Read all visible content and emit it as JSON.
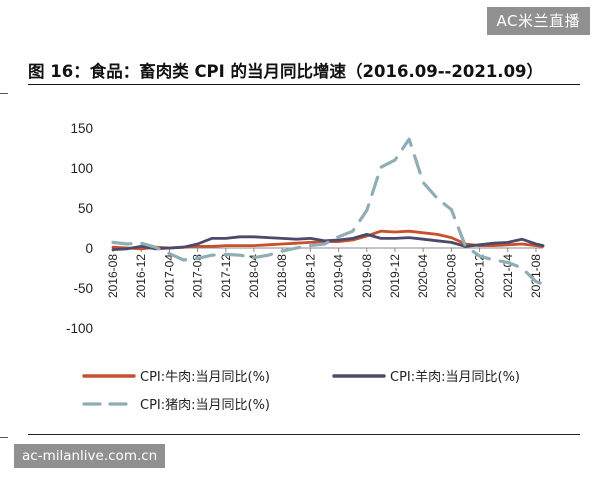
{
  "watermark": "AC米兰直播",
  "footer_url": "ac-milanlive.com.cn",
  "chart_data": {
    "type": "line",
    "title": "图 16：食品：畜肉类 CPI 的当月同比增速（2016.09--2021.09）",
    "xlabel": "",
    "ylabel": "",
    "ylim": [
      -100,
      150
    ],
    "yticks": [
      150,
      100,
      50,
      0,
      -50,
      -100
    ],
    "xtick_labels": [
      "2016-08",
      "2016-12",
      "2017-04",
      "2017-08",
      "2017-12",
      "2018-04",
      "2018-08",
      "2018-12",
      "2019-04",
      "2019-08",
      "2019-12",
      "2020-04",
      "2020-08",
      "2020-12",
      "2021-04",
      "2021-08"
    ],
    "x": [
      "2016-08",
      "2016-10",
      "2016-12",
      "2017-02",
      "2017-04",
      "2017-06",
      "2017-08",
      "2017-10",
      "2017-12",
      "2018-02",
      "2018-04",
      "2018-06",
      "2018-08",
      "2018-10",
      "2018-12",
      "2019-02",
      "2019-04",
      "2019-06",
      "2019-08",
      "2019-10",
      "2019-12",
      "2020-02",
      "2020-04",
      "2020-06",
      "2020-08",
      "2020-10",
      "2020-12",
      "2021-02",
      "2021-04",
      "2021-06",
      "2021-08",
      "2021-09"
    ],
    "series": [
      {
        "name": "CPI:牛肉:当月同比(%)",
        "color": "#c8502c",
        "style": "solid",
        "values": [
          1,
          0,
          -1,
          1,
          0,
          1,
          2,
          2,
          3,
          3,
          3,
          4,
          5,
          6,
          7,
          8,
          8,
          10,
          15,
          21,
          20,
          21,
          19,
          17,
          13,
          5,
          3,
          3,
          4,
          5,
          3,
          2
        ]
      },
      {
        "name": "CPI:羊肉:当月同比(%)",
        "color": "#4c4a6a",
        "style": "solid",
        "values": [
          -2,
          -1,
          2,
          -1,
          0,
          1,
          5,
          12,
          12,
          14,
          14,
          13,
          12,
          11,
          12,
          9,
          10,
          12,
          17,
          12,
          12,
          13,
          11,
          9,
          7,
          2,
          4,
          6,
          7,
          11,
          5,
          3
        ]
      },
      {
        "name": "CPI:猪肉:当月同比(%)",
        "color": "#8fadb4",
        "style": "dashed",
        "values": [
          7,
          5,
          6,
          1,
          -7,
          -15,
          -13,
          -9,
          -8,
          -9,
          -12,
          -9,
          -4,
          0,
          3,
          5,
          14,
          21,
          47,
          101,
          110,
          136,
          82,
          62,
          48,
          2,
          -10,
          -15,
          -18,
          -25,
          -42,
          -45
        ]
      }
    ],
    "legend_position": "bottom"
  }
}
